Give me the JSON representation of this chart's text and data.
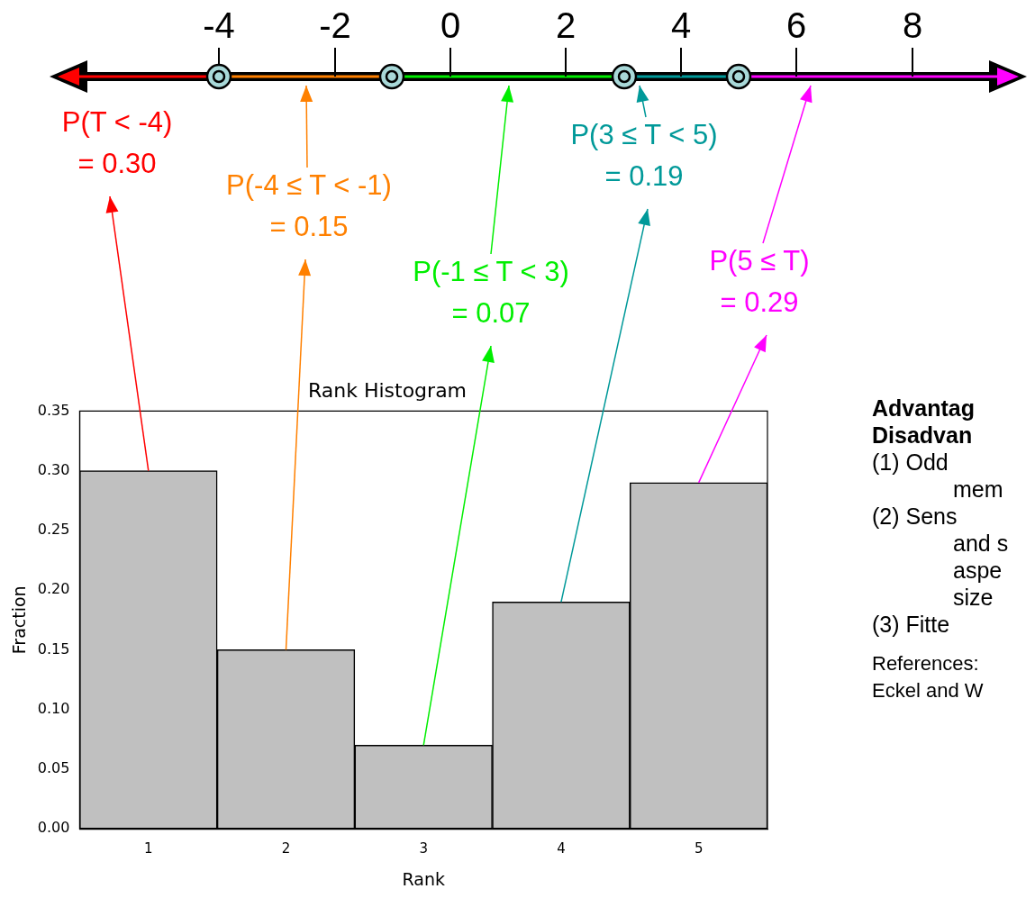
{
  "chart_data": {
    "type": "bar",
    "title": "Rank Histogram",
    "xlabel": "Rank",
    "ylabel": "Fraction",
    "categories": [
      "1",
      "2",
      "3",
      "4",
      "5"
    ],
    "values": [
      0.3,
      0.15,
      0.07,
      0.19,
      0.29
    ],
    "color": "#c0c0c0",
    "ylim": [
      0,
      0.35
    ],
    "yticks": [
      {
        "value": 0,
        "label": "0.00"
      },
      {
        "value": 0.05,
        "label": "0.05"
      },
      {
        "value": 0.1,
        "label": "0.10"
      },
      {
        "value": 0.15,
        "label": "0.15"
      },
      {
        "value": 0.2,
        "label": "0.20"
      },
      {
        "value": 0.25,
        "label": "0.25"
      },
      {
        "value": 0.3,
        "label": "0.30"
      },
      {
        "value": 0.35,
        "label": "0.35"
      }
    ],
    "grid": false,
    "legend": false,
    "annotations": [
      {
        "text": "P(T < -4)\n= 0.30",
        "x": "1",
        "y": 0.3
      },
      {
        "text": "P(-4 ≤ T < -1)\n= 0.15",
        "x": "2",
        "y": 0.15
      },
      {
        "text": "P(-1 ≤ T < 3)\n= 0.07",
        "x": "3",
        "y": 0.07
      },
      {
        "text": "P(3 ≤ T < 5)\n= 0.19",
        "x": "4",
        "y": 0.19
      },
      {
        "text": "P(5 ≤ T)\n= 0.29",
        "x": "5",
        "y": 0.29
      },
      "-4",
      "-2",
      "0",
      "2",
      "4",
      "6",
      "8",
      "Advantag",
      "Disadvan",
      "(1)   Odd",
      "mem",
      "(2)   Sens",
      "and s",
      "aspe",
      "size",
      "(3)   Fitte",
      "References:",
      "Eckel and W"
    ]
  }
}
